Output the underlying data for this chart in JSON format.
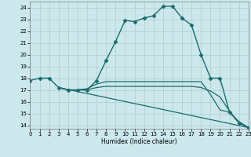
{
  "xlabel": "Humidex (Indice chaleur)",
  "background_color": "#cce8ec",
  "grid_color": "#aacfcf",
  "line_color": "#1a6b6b",
  "xlim": [
    0,
    23
  ],
  "ylim": [
    13.7,
    24.5
  ],
  "yticks": [
    14,
    15,
    16,
    17,
    18,
    19,
    20,
    21,
    22,
    23,
    24
  ],
  "xticks": [
    0,
    1,
    2,
    3,
    4,
    5,
    6,
    7,
    8,
    9,
    10,
    11,
    12,
    13,
    14,
    15,
    16,
    17,
    18,
    19,
    20,
    21,
    22,
    23
  ],
  "lines": [
    {
      "x": [
        0,
        1,
        2,
        3,
        4,
        5,
        6,
        7,
        8,
        9,
        10,
        11,
        12,
        13,
        14,
        15,
        16,
        17,
        18,
        19,
        20,
        21,
        22,
        23
      ],
      "y": [
        17.8,
        18.0,
        18.0,
        17.2,
        17.0,
        17.0,
        17.0,
        17.8,
        19.5,
        21.1,
        22.9,
        22.8,
        23.1,
        23.3,
        24.1,
        24.1,
        23.1,
        22.5,
        20.0,
        18.0,
        18.0,
        15.1,
        14.2,
        13.8
      ],
      "marker": "D",
      "markersize": 2.5,
      "linewidth": 1.0,
      "has_marker": true
    },
    {
      "x": [
        3,
        4,
        5,
        6,
        7,
        8,
        9,
        10,
        11,
        12,
        13,
        14,
        15,
        16,
        17,
        18,
        19,
        20,
        21,
        22,
        23
      ],
      "y": [
        17.2,
        17.0,
        17.0,
        17.1,
        17.5,
        17.7,
        17.7,
        17.7,
        17.7,
        17.7,
        17.7,
        17.7,
        17.7,
        17.7,
        17.7,
        17.7,
        16.6,
        15.3,
        15.1,
        14.3,
        13.8
      ],
      "marker": null,
      "markersize": 0,
      "linewidth": 0.9,
      "has_marker": false
    },
    {
      "x": [
        3,
        23
      ],
      "y": [
        17.2,
        13.8
      ],
      "marker": null,
      "markersize": 0,
      "linewidth": 0.9,
      "has_marker": false
    },
    {
      "x": [
        5,
        6,
        7,
        8,
        9,
        10,
        11,
        12,
        13,
        14,
        15,
        16,
        17,
        18,
        19,
        20,
        21,
        22,
        23
      ],
      "y": [
        17.0,
        17.0,
        17.2,
        17.3,
        17.3,
        17.3,
        17.3,
        17.3,
        17.3,
        17.3,
        17.3,
        17.3,
        17.3,
        17.2,
        16.9,
        16.4,
        15.2,
        14.2,
        13.8
      ],
      "marker": null,
      "markersize": 0,
      "linewidth": 0.9,
      "has_marker": false
    }
  ]
}
